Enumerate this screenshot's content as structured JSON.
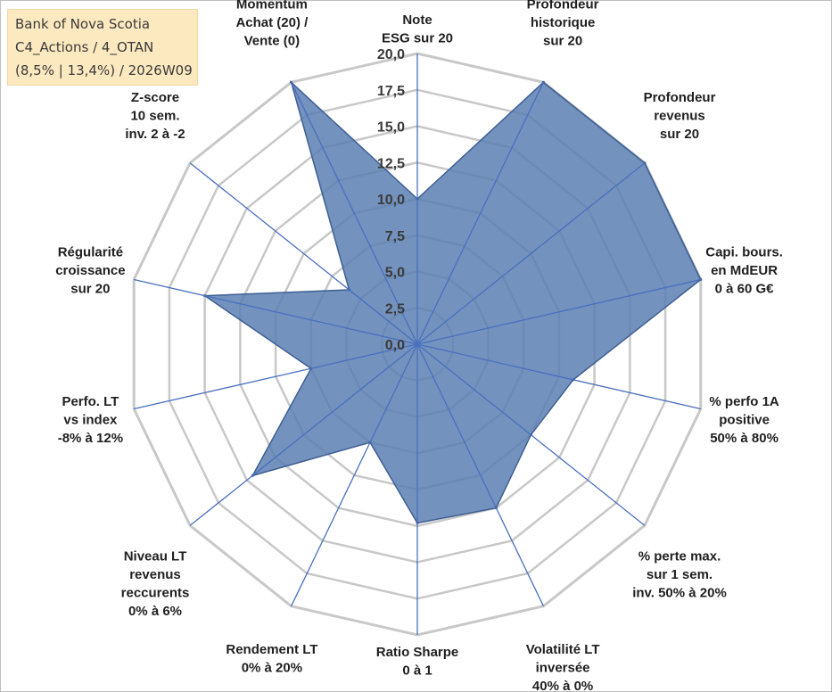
{
  "title_box": {
    "line1": "Bank of Nova Scotia",
    "line2": "C4_Actions / 4_OTAN",
    "line3": "(8,5% | 13,4%) / 2026W09"
  },
  "chart_data": {
    "type": "radar",
    "axes": [
      [
        "Note",
        "ESG sur 20"
      ],
      [
        "Profondeur",
        "historique",
        "sur 20"
      ],
      [
        "Profondeur",
        "revenus",
        "sur 20"
      ],
      [
        "Capi. bours.",
        "en MdEUR",
        "0 à 60 G€"
      ],
      [
        "% perfo 1A",
        "positive",
        "50% à 80%"
      ],
      [
        "% perte max.",
        "sur 1 sem.",
        "inv. 50% à 20%"
      ],
      [
        "Volatilité LT",
        "inversée",
        "40% à 0%"
      ],
      [
        "Ratio Sharpe",
        "0 à 1"
      ],
      [
        "Rendement LT",
        "0% à 20%"
      ],
      [
        "Niveau LT",
        "revenus",
        "reccurents",
        "0% à 6%"
      ],
      [
        "Perfo. LT",
        "vs index",
        "-8% à 12%"
      ],
      [
        "Régularité",
        "croissance",
        "sur 20"
      ],
      [
        "Z-score",
        "10 sem.",
        "inv. 2 à -2"
      ],
      [
        "Momentum",
        "Achat (20) /",
        "Vente (0)"
      ]
    ],
    "series": [
      {
        "name": "Bank of Nova Scotia",
        "values": [
          10,
          20,
          20,
          20,
          11,
          10,
          12.5,
          12.3,
          7.5,
          14.5,
          7.5,
          15,
          6,
          20
        ]
      }
    ],
    "ticks": [
      "0,0",
      "2,5",
      "5,0",
      "7,5",
      "10,0",
      "12,5",
      "15,0",
      "17,5",
      "20,0"
    ],
    "rmin": 0,
    "rmax": 20,
    "gridlines": true,
    "colors": {
      "fill": "#5b7fb1",
      "stroke": "#3e5f94",
      "grid": "#c8c8c8",
      "spoke": "#4a6fbf"
    }
  }
}
